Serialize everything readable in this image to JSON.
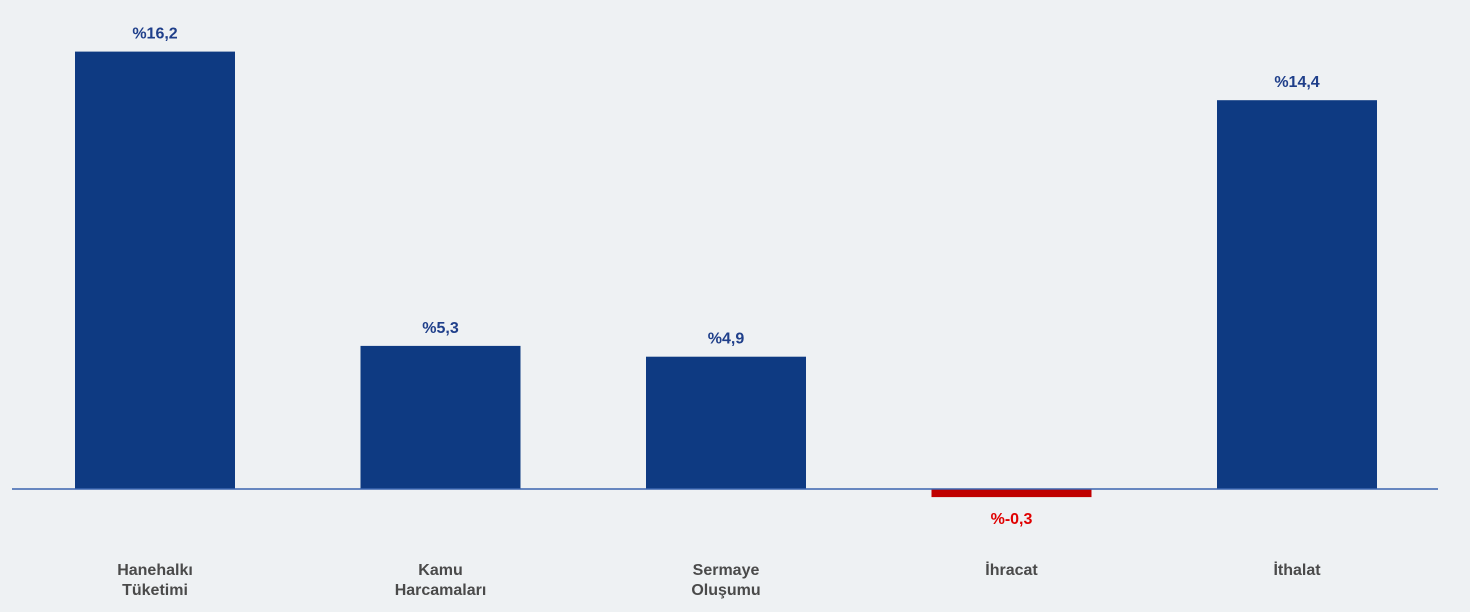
{
  "chart_data": {
    "type": "bar",
    "categories": [
      [
        "Hanehalkı",
        "Tüketimi"
      ],
      [
        "Kamu",
        "Harcamaları"
      ],
      [
        "Sermaye",
        "Oluşumu"
      ],
      [
        "İhracat"
      ],
      [
        "İthalat"
      ]
    ],
    "values": [
      16.2,
      5.3,
      4.9,
      -0.3,
      14.4
    ],
    "value_labels": [
      "%16,2",
      "%5,3",
      "%4,9",
      "%-0,3",
      "%14,4"
    ],
    "title": "",
    "xlabel": "",
    "ylabel": "",
    "grid": false,
    "colors": {
      "positive": "#0e3a82",
      "negative": "#c00000",
      "positive_label": "#1f3f8a",
      "negative_label": "#e00000",
      "axis": "#3a64b0"
    }
  }
}
